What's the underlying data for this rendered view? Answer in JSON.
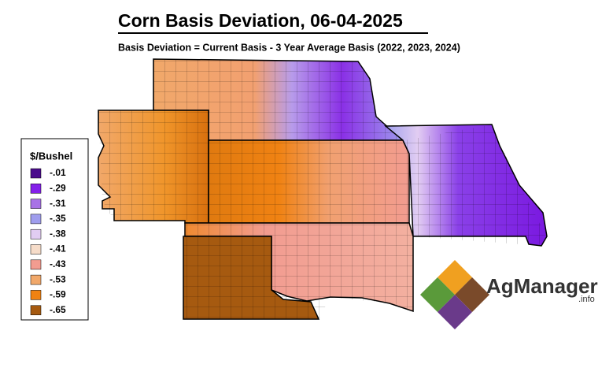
{
  "title": "Corn Basis Deviation, 06-04-2025",
  "subtitle": "Basis Deviation = Current Basis - 3 Year Average Basis (2022, 2023, 2024)",
  "legend": {
    "title": "$/Bushel",
    "entries": [
      {
        "label": "-.01",
        "color": "#4a0c8c"
      },
      {
        "label": "-.29",
        "color": "#8420ea"
      },
      {
        "label": "-.31",
        "color": "#a873e6"
      },
      {
        "label": "-.35",
        "color": "#9f9ded"
      },
      {
        "label": "-.38",
        "color": "#e2cdf2"
      },
      {
        "label": "-.41",
        "color": "#f6dcc9"
      },
      {
        "label": "-.43",
        "color": "#f29c90"
      },
      {
        "label": "-.53",
        "color": "#f1a86a"
      },
      {
        "label": "-.59",
        "color": "#f08212"
      },
      {
        "label": "-.65",
        "color": "#a65a10"
      }
    ]
  },
  "logo": {
    "name": "AgManager",
    "suffix": ".info"
  }
}
